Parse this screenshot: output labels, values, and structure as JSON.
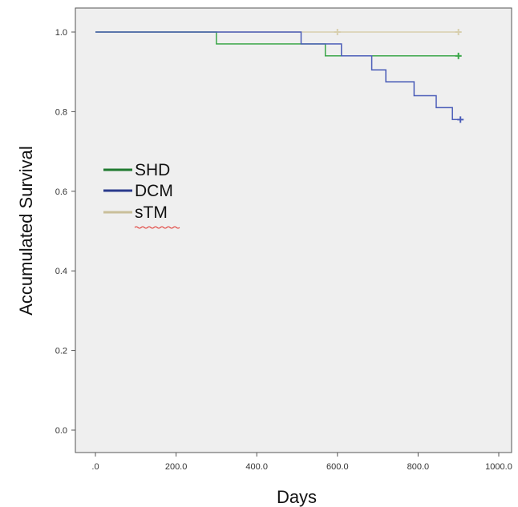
{
  "chart_data": {
    "type": "line",
    "xlabel": "Days",
    "ylabel": "Accumulated Survival",
    "xlim": [
      0,
      1000
    ],
    "ylim": [
      0,
      1
    ],
    "x_ticks": [
      0,
      200,
      400,
      600,
      800,
      1000
    ],
    "x_tick_labels": [
      ".0",
      "200.0",
      "400.0",
      "600.0",
      "800.0",
      "1000.0"
    ],
    "y_ticks": [
      0,
      0.2,
      0.4,
      0.6,
      0.8,
      1.0
    ],
    "y_tick_labels": [
      "0.0",
      "0.2",
      "0.4",
      "0.6",
      "0.8",
      "1.0"
    ],
    "grid": false,
    "legend_position": "left-middle",
    "series": [
      {
        "name": "SHD",
        "color": "#3aa648",
        "legend_color": "#1f7a2f",
        "steps": [
          {
            "x": 0,
            "y": 1.0
          },
          {
            "x": 300,
            "y": 0.97
          },
          {
            "x": 570,
            "y": 0.94
          },
          {
            "x": 900,
            "y": 0.94
          }
        ],
        "censored": [
          {
            "x": 900,
            "y": 0.94
          }
        ]
      },
      {
        "name": "DCM",
        "color": "#4a5cb8",
        "legend_color": "#2a3a8c",
        "steps": [
          {
            "x": 0,
            "y": 1.0
          },
          {
            "x": 510,
            "y": 0.97
          },
          {
            "x": 610,
            "y": 0.94
          },
          {
            "x": 685,
            "y": 0.905
          },
          {
            "x": 720,
            "y": 0.875
          },
          {
            "x": 790,
            "y": 0.84
          },
          {
            "x": 845,
            "y": 0.81
          },
          {
            "x": 885,
            "y": 0.78
          },
          {
            "x": 905,
            "y": 0.78
          }
        ],
        "censored": [
          {
            "x": 905,
            "y": 0.78
          }
        ]
      },
      {
        "name": "sTM",
        "color": "#d8cfae",
        "legend_color": "#c9bf9a",
        "steps": [
          {
            "x": 0,
            "y": 1.0
          },
          {
            "x": 900,
            "y": 1.0
          }
        ],
        "censored": [
          {
            "x": 600,
            "y": 1.0
          },
          {
            "x": 900,
            "y": 1.0
          }
        ]
      }
    ]
  }
}
